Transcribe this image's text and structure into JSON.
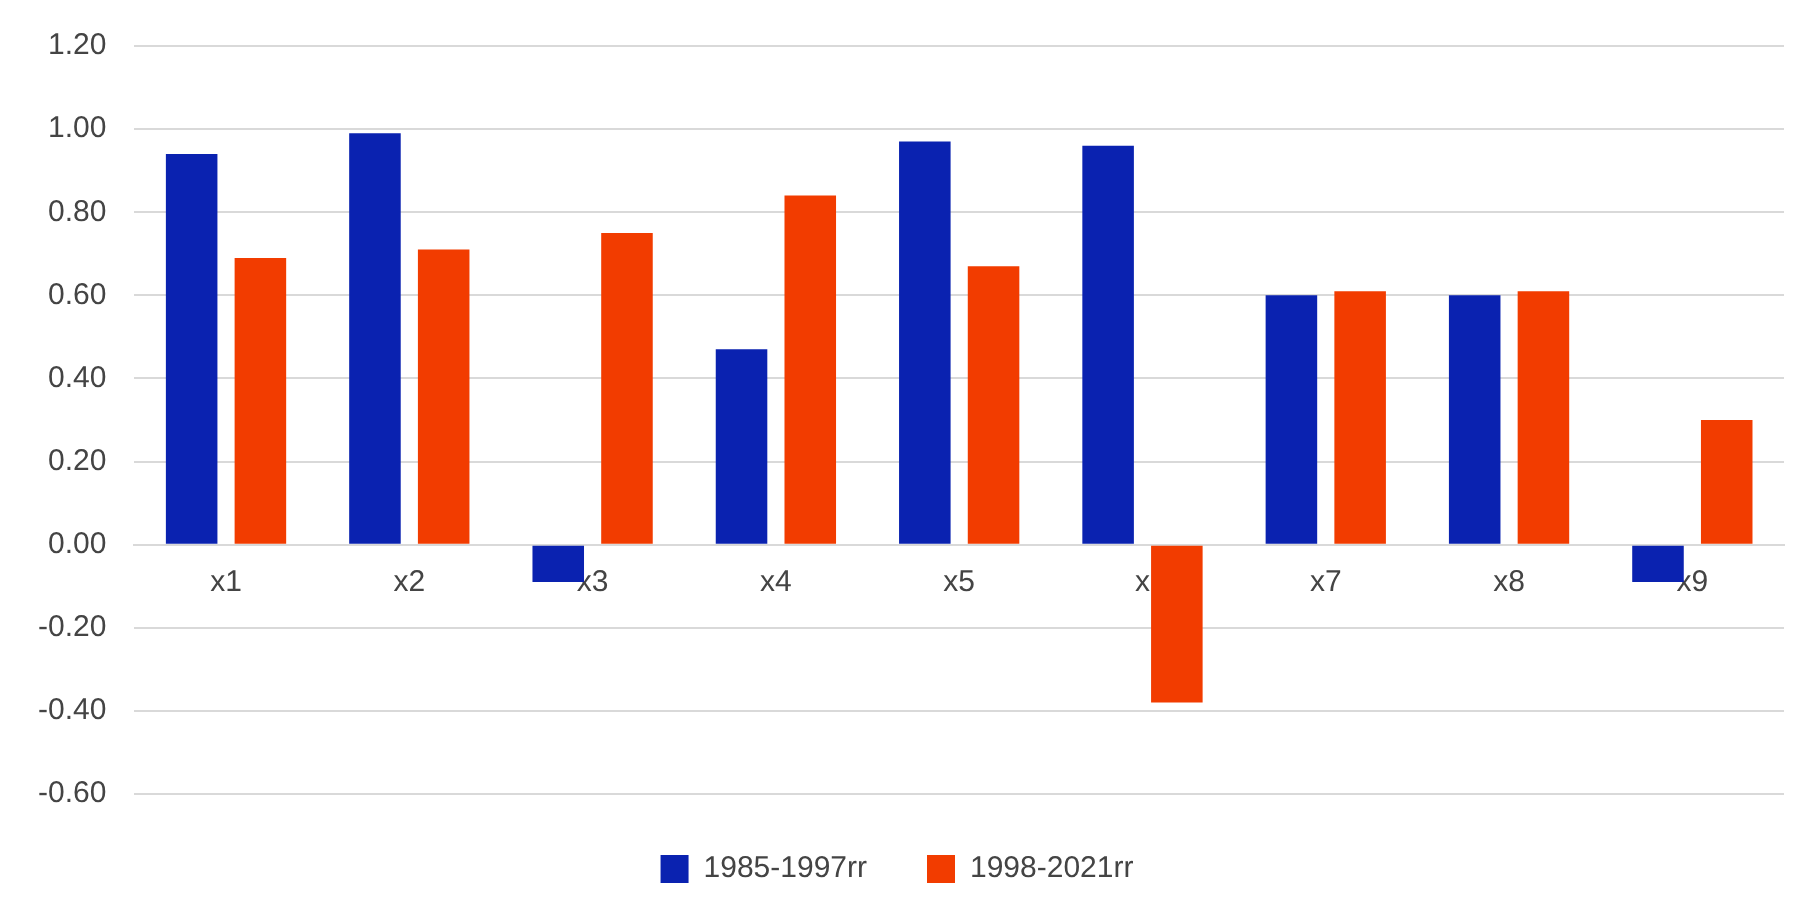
{
  "chart_data": {
    "type": "bar",
    "categories": [
      "x1",
      "x2",
      "x3",
      "x4",
      "x5",
      "x",
      "x7",
      "x8",
      "x9"
    ],
    "series": [
      {
        "name": "1985-1997rr",
        "color": "#0a22b0",
        "values": [
          0.94,
          0.99,
          -0.09,
          0.47,
          0.97,
          0.96,
          0.6,
          0.6,
          -0.09
        ]
      },
      {
        "name": "1998-2021rr",
        "color": "#f23c00",
        "values": [
          0.69,
          0.71,
          0.75,
          0.84,
          0.67,
          -0.38,
          0.61,
          0.61,
          0.3
        ]
      }
    ],
    "ylim": [
      -0.6,
      1.2
    ],
    "yticks": [
      {
        "value": -0.6,
        "label": "-0.60"
      },
      {
        "value": -0.4,
        "label": "-0.40"
      },
      {
        "value": -0.2,
        "label": "-0.20"
      },
      {
        "value": 0,
        "label": "0.00"
      },
      {
        "value": 0.2,
        "label": "0.20"
      },
      {
        "value": 0.4,
        "label": "0.40"
      },
      {
        "value": 0.6,
        "label": "0.60"
      },
      {
        "value": 0.8,
        "label": "0.80"
      },
      {
        "value": 1,
        "label": "1.00"
      },
      {
        "value": 1.2,
        "label": "1.20"
      }
    ],
    "grid": "y",
    "legend": "bottom"
  }
}
